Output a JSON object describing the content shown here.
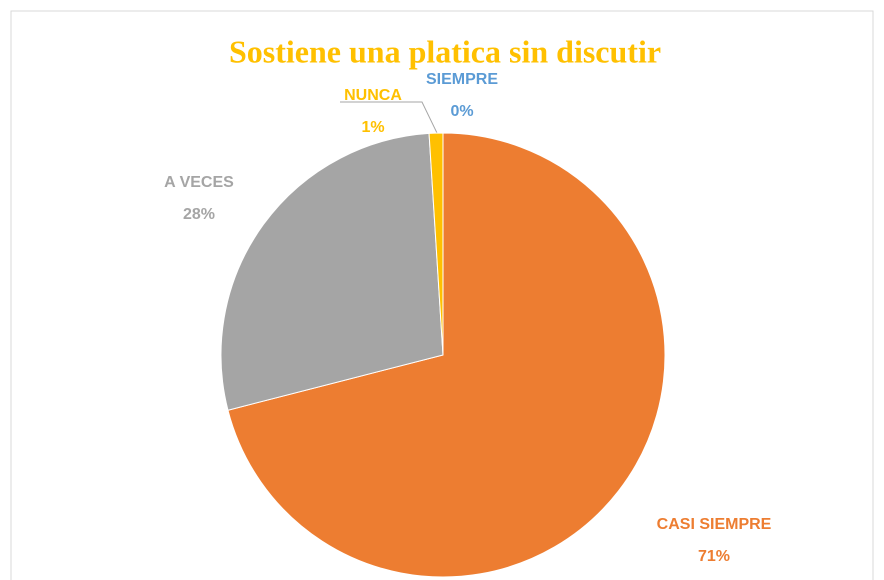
{
  "chart_data": {
    "type": "pie",
    "title": "Sostiene una platica sin discutir",
    "categories": [
      "SIEMPRE",
      "CASI SIEMPRE",
      "A VECES",
      "NUNCA"
    ],
    "values": [
      0,
      71,
      28,
      1
    ],
    "value_labels": [
      "0%",
      "71%",
      "28%",
      "1%"
    ],
    "colors": [
      "#5b9bd5",
      "#ed7d31",
      "#a5a5a5",
      "#ffc000"
    ]
  }
}
